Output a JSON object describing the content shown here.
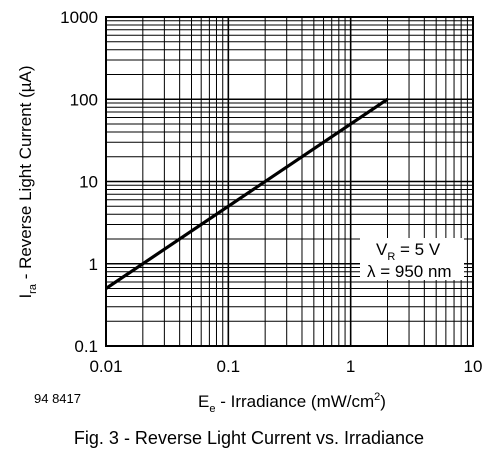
{
  "chart_data": {
    "type": "line",
    "x_scale": "log",
    "y_scale": "log",
    "xlim": [
      0.01,
      10
    ],
    "ylim": [
      0.1,
      1000
    ],
    "grid": true,
    "xticks": [
      "0.01",
      "0.1",
      "1",
      "10"
    ],
    "yticks": [
      "0.1",
      "1",
      "10",
      "100",
      "1000"
    ],
    "xlabel": {
      "symbol": "E",
      "sub": "e",
      "text": " - Irradiance (mW/cm",
      "sup": "2",
      "tail": ")"
    },
    "ylabel": {
      "symbol": "I",
      "sub": "ra",
      "text": " - Reverse Light Current (µA)"
    },
    "series": [
      {
        "x": [
          0.01,
          2
        ],
        "y": [
          0.5,
          100
        ]
      }
    ],
    "annotations": {
      "line1": {
        "symbol": "V",
        "sub": "R",
        "text": " = 5 V"
      },
      "line2": "λ = 950 nm"
    },
    "figure_id": "94 8417"
  },
  "caption": "Fig. 3 - Reverse Light Current vs. Irradiance"
}
